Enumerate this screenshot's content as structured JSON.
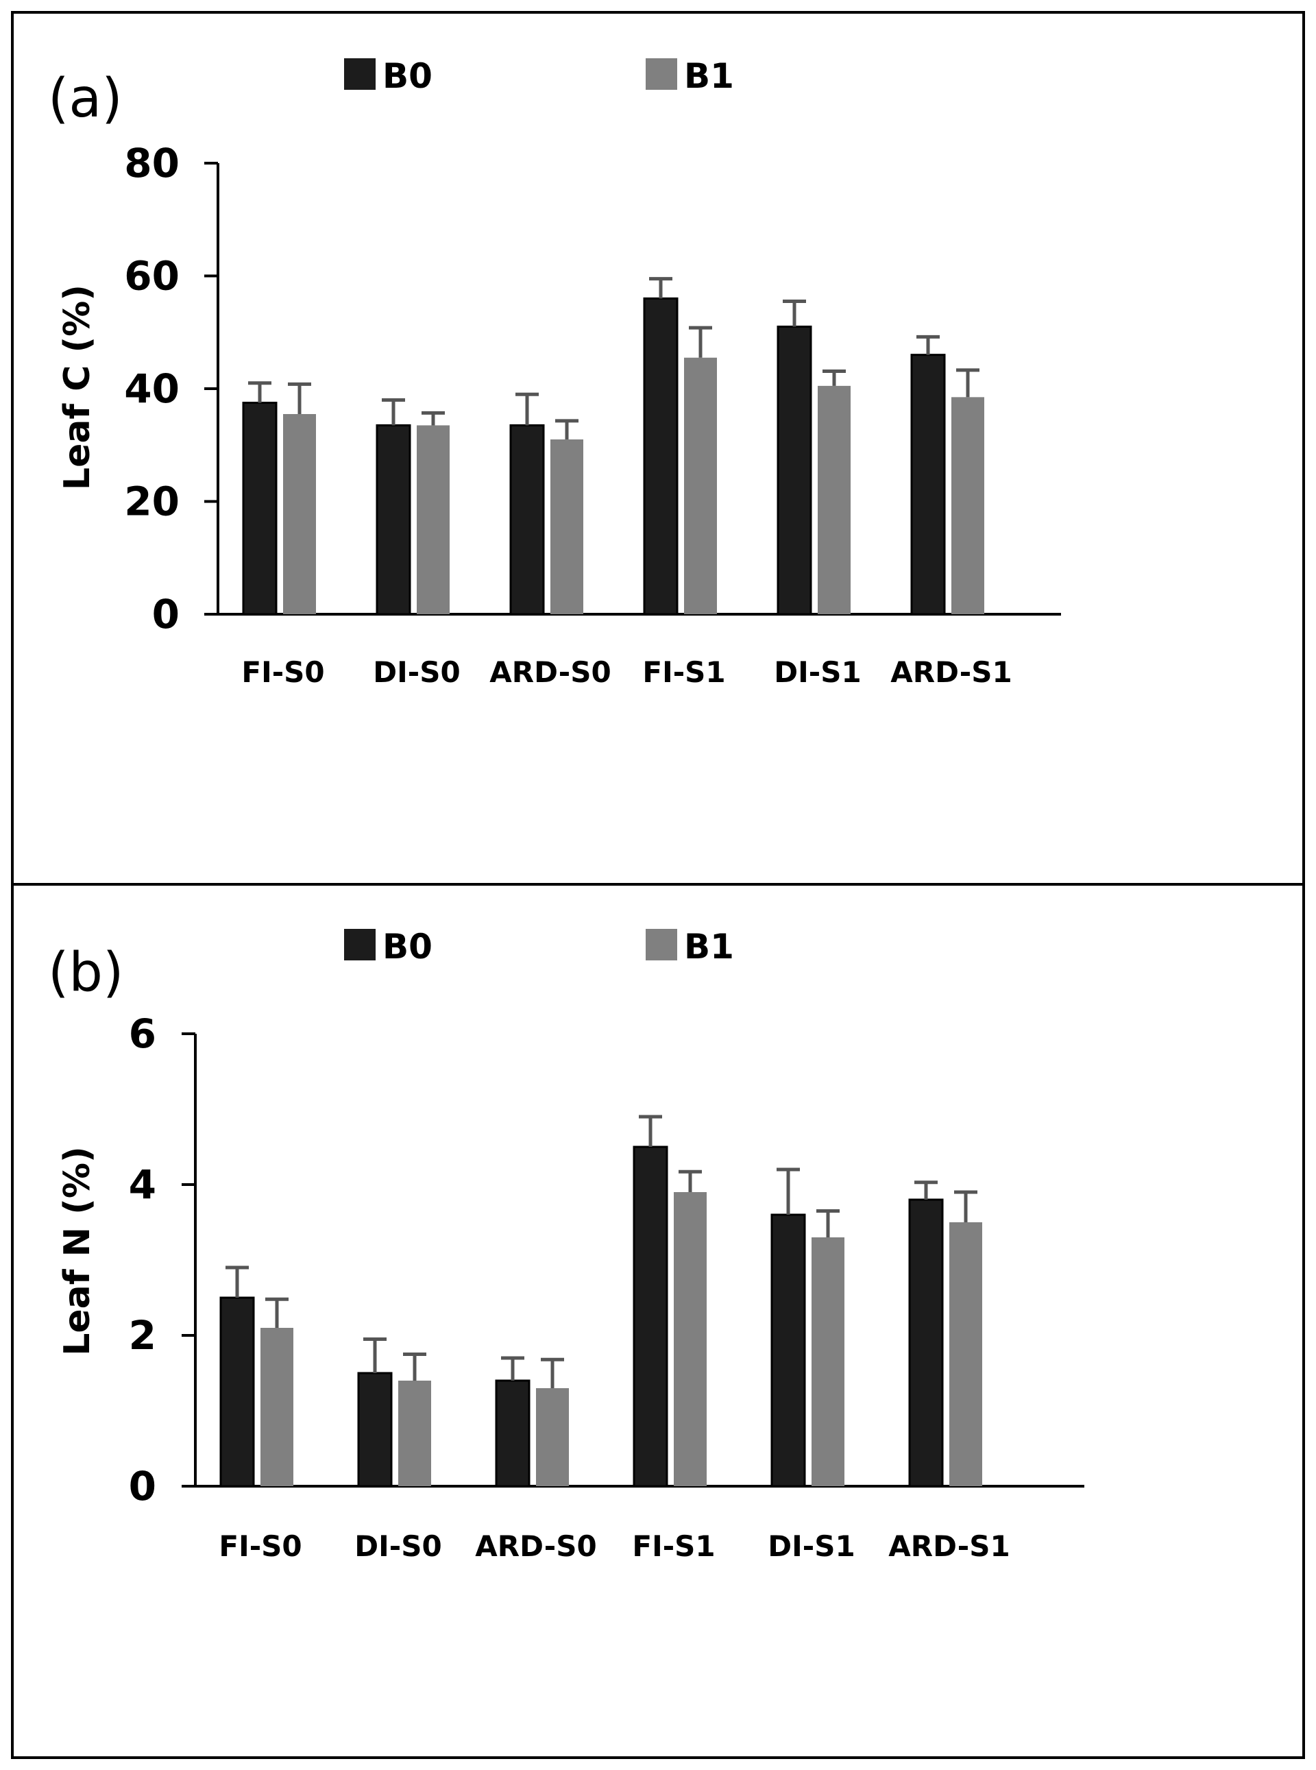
{
  "chart_data": [
    {
      "type": "bar",
      "panel_label": "(a)",
      "ylabel": "Leaf C (%)",
      "xlabel": "",
      "ylim": [
        0,
        80
      ],
      "yticks": [
        "0",
        "20",
        "40",
        "60",
        "80"
      ],
      "ytick_values": [
        0,
        20,
        40,
        60,
        80
      ],
      "categories": [
        "FI-S0",
        "DI-S0",
        "ARD-S0",
        "FI-S1",
        "DI-S1",
        "ARD-S1"
      ],
      "legend_position": "top",
      "series": [
        {
          "name": "B0",
          "color": "#1c1c1c",
          "values": [
            37.5,
            33.5,
            33.5,
            56,
            51,
            46
          ],
          "errors": [
            3.5,
            4.5,
            5.5,
            3.5,
            4.5,
            3.2
          ]
        },
        {
          "name": "B1",
          "color": "#808080",
          "values": [
            35.5,
            33.5,
            31,
            45.5,
            40.5,
            38.5
          ],
          "errors": [
            5.3,
            2.2,
            3.3,
            5.3,
            2.6,
            4.8
          ]
        }
      ]
    },
    {
      "type": "bar",
      "panel_label": "(b)",
      "ylabel": "Leaf N (%)",
      "xlabel": "",
      "ylim": [
        0,
        6
      ],
      "yticks": [
        "0",
        "2",
        "4",
        "6"
      ],
      "ytick_values": [
        0,
        2,
        4,
        6
      ],
      "categories": [
        "FI-S0",
        "DI-S0",
        "ARD-S0",
        "FI-S1",
        "DI-S1",
        "ARD-S1"
      ],
      "legend_position": "top",
      "series": [
        {
          "name": "B0",
          "color": "#1c1c1c",
          "values": [
            2.5,
            1.5,
            1.4,
            4.5,
            3.6,
            3.8
          ],
          "errors": [
            0.4,
            0.45,
            0.3,
            0.4,
            0.6,
            0.23
          ]
        },
        {
          "name": "B1",
          "color": "#808080",
          "values": [
            2.1,
            1.4,
            1.3,
            3.9,
            3.3,
            3.5
          ],
          "errors": [
            0.38,
            0.35,
            0.38,
            0.27,
            0.35,
            0.4
          ]
        }
      ]
    }
  ]
}
